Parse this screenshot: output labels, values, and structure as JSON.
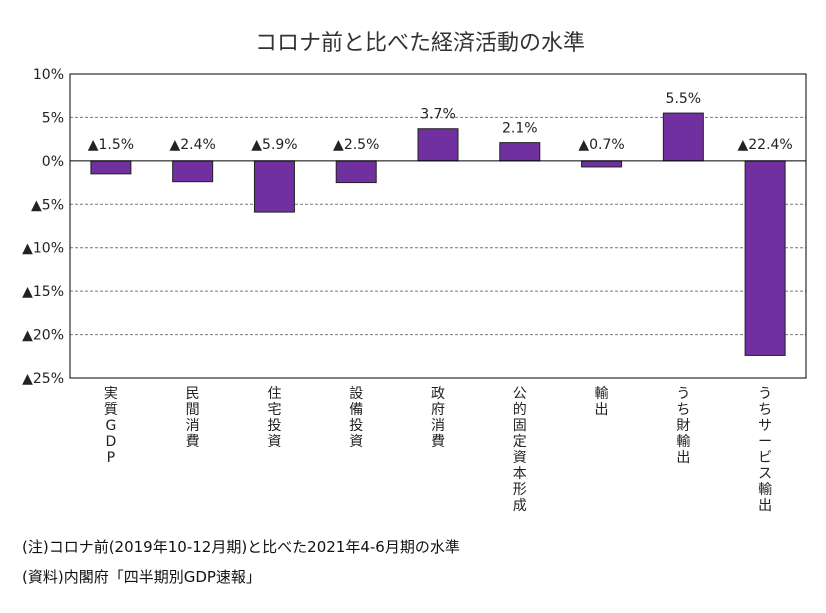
{
  "chart_data": {
    "type": "bar",
    "title": "コロナ前と比べた経済活動の水準",
    "categories": [
      "実質GDP",
      "民間消費",
      "住宅投資",
      "設備投資",
      "政府消費",
      "公的固定資本形成",
      "輸出",
      "うち財輸出",
      "うちサービス輸出"
    ],
    "values": [
      -1.5,
      -2.4,
      -5.9,
      -2.5,
      3.7,
      2.1,
      -0.7,
      5.5,
      -22.4
    ],
    "value_labels": [
      "▲1.5%",
      "▲2.4%",
      "▲5.9%",
      "▲2.5%",
      "3.7%",
      "2.1%",
      "▲0.7%",
      "5.5%",
      "▲22.4%"
    ],
    "ylim": [
      -25,
      10
    ],
    "yticks": [
      10,
      5,
      0,
      -5,
      -10,
      -15,
      -20,
      -25
    ],
    "ytick_labels": [
      "10%",
      "5%",
      "0%",
      "▲5%",
      "▲10%",
      "▲15%",
      "▲20%",
      "▲25%"
    ],
    "xlabel": "",
    "ylabel": "",
    "grid": "horizontal dashed",
    "bar_color": "#7030a0"
  },
  "notes": {
    "note1": "(注)コロナ前(2019年10-12月期)と比べた2021年4-6月期の水準",
    "source": "(資料)内閣府「四半期別GDP速報」"
  }
}
